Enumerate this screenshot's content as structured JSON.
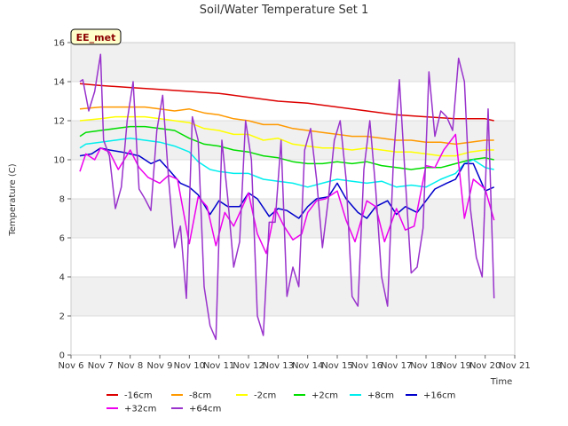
{
  "chart_data": {
    "type": "line",
    "title": "Soil/Water Temperature Set 1",
    "xlabel": "Time",
    "ylabel": "Temperature (C)",
    "site_badge": "EE_met",
    "xlim": [
      6,
      21
    ],
    "ylim": [
      0,
      16
    ],
    "x_ticks": [
      6,
      7,
      8,
      9,
      10,
      11,
      12,
      13,
      14,
      15,
      16,
      17,
      18,
      19,
      20,
      21
    ],
    "x_tick_labels": [
      "Nov 6",
      "Nov 7",
      "Nov 8",
      "Nov 9",
      "Nov 10",
      "Nov 11",
      "Nov 12",
      "Nov 13",
      "Nov 14",
      "Nov 15",
      "Nov 16",
      "Nov 17",
      "Nov 18",
      "Nov 19",
      "Nov 20",
      "Nov 21"
    ],
    "y_ticks": [
      0,
      2,
      4,
      6,
      8,
      10,
      12,
      14,
      16
    ],
    "y_tick_labels": [
      "0",
      "2",
      "4",
      "6",
      "8",
      "10",
      "12",
      "14",
      "16"
    ],
    "grid": true,
    "banded_background": true,
    "legend_position": "bottom",
    "series": [
      {
        "name": "-16cm",
        "color": "#dd0000",
        "x": [
          6.3,
          7,
          8,
          9,
          10,
          11,
          12,
          13,
          14,
          15,
          16,
          17,
          18,
          19,
          20,
          20.3
        ],
        "y": [
          13.9,
          13.8,
          13.7,
          13.6,
          13.5,
          13.4,
          13.2,
          13.0,
          12.9,
          12.7,
          12.5,
          12.3,
          12.2,
          12.1,
          12.1,
          12.0
        ]
      },
      {
        "name": "-8cm",
        "color": "#ff9900",
        "x": [
          6.3,
          7,
          8,
          8.5,
          9,
          9.5,
          10,
          10.5,
          11,
          11.5,
          12,
          12.5,
          13,
          13.5,
          14,
          14.5,
          15,
          15.5,
          16,
          16.5,
          17,
          17.5,
          18,
          18.5,
          19,
          19.5,
          20,
          20.3
        ],
        "y": [
          12.6,
          12.7,
          12.7,
          12.7,
          12.6,
          12.5,
          12.6,
          12.4,
          12.3,
          12.1,
          12.0,
          11.8,
          11.8,
          11.6,
          11.5,
          11.4,
          11.3,
          11.2,
          11.2,
          11.1,
          11.0,
          11.0,
          10.9,
          10.9,
          10.8,
          10.9,
          11.0,
          11.0
        ]
      },
      {
        "name": "-2cm",
        "color": "#ffff00",
        "x": [
          6.3,
          7,
          7.5,
          8,
          8.5,
          9,
          9.5,
          10,
          10.5,
          11,
          11.5,
          12,
          12.5,
          13,
          13.5,
          14,
          14.5,
          15,
          15.5,
          16,
          16.5,
          17,
          17.5,
          18,
          18.5,
          19,
          19.5,
          20,
          20.3
        ],
        "y": [
          12.0,
          12.1,
          12.2,
          12.2,
          12.2,
          12.1,
          12.0,
          11.9,
          11.6,
          11.5,
          11.3,
          11.3,
          11.0,
          11.1,
          10.8,
          10.7,
          10.6,
          10.6,
          10.5,
          10.6,
          10.5,
          10.4,
          10.4,
          10.3,
          10.2,
          10.2,
          10.4,
          10.5,
          10.5
        ]
      },
      {
        "name": "+2cm",
        "color": "#00dd00",
        "x": [
          6.3,
          6.5,
          7,
          7.5,
          8,
          8.5,
          9,
          9.5,
          10,
          10.5,
          11,
          11.5,
          12,
          12.5,
          13,
          13.5,
          14,
          14.5,
          15,
          15.5,
          16,
          16.5,
          17,
          17.5,
          18,
          18.5,
          19,
          19.5,
          20,
          20.3
        ],
        "y": [
          11.2,
          11.4,
          11.5,
          11.6,
          11.7,
          11.7,
          11.6,
          11.5,
          11.1,
          10.8,
          10.7,
          10.5,
          10.4,
          10.2,
          10.1,
          9.9,
          9.8,
          9.8,
          9.9,
          9.8,
          9.9,
          9.7,
          9.6,
          9.5,
          9.6,
          9.6,
          9.8,
          10.0,
          10.1,
          10.0
        ]
      },
      {
        "name": "+8cm",
        "color": "#00eeee",
        "x": [
          6.3,
          6.5,
          7,
          7.5,
          8,
          8.5,
          9,
          9.5,
          10,
          10.3,
          10.7,
          11,
          11.5,
          12,
          12.5,
          13,
          13.5,
          14,
          14.5,
          15,
          15.5,
          16,
          16.5,
          17,
          17.5,
          18,
          18.5,
          19,
          19.3,
          19.6,
          20,
          20.3
        ],
        "y": [
          10.6,
          10.8,
          10.9,
          11.0,
          11.1,
          11.0,
          10.9,
          10.7,
          10.4,
          9.9,
          9.5,
          9.4,
          9.3,
          9.3,
          9.0,
          8.9,
          8.8,
          8.6,
          8.8,
          9.0,
          8.9,
          8.8,
          8.9,
          8.6,
          8.7,
          8.6,
          9.0,
          9.3,
          9.8,
          10.0,
          9.6,
          9.5
        ]
      },
      {
        "name": "+16cm",
        "color": "#0000cc",
        "x": [
          6.3,
          6.7,
          7,
          7.3,
          7.7,
          8,
          8.3,
          8.7,
          9,
          9.3,
          9.7,
          10,
          10.3,
          10.7,
          11,
          11.3,
          11.7,
          12,
          12.3,
          12.7,
          13,
          13.3,
          13.7,
          14,
          14.3,
          14.7,
          15,
          15.3,
          15.7,
          16,
          16.3,
          16.7,
          17,
          17.3,
          17.7,
          18,
          18.3,
          18.7,
          19,
          19.3,
          19.6,
          20,
          20.3
        ],
        "y": [
          10.2,
          10.3,
          10.6,
          10.5,
          10.4,
          10.3,
          10.2,
          9.8,
          10.0,
          9.5,
          8.8,
          8.6,
          8.2,
          7.2,
          7.9,
          7.6,
          7.6,
          8.3,
          8.0,
          7.1,
          7.5,
          7.4,
          7.0,
          7.6,
          8.0,
          8.1,
          8.8,
          8.0,
          7.3,
          7.0,
          7.6,
          7.9,
          7.2,
          7.6,
          7.3,
          7.9,
          8.5,
          8.8,
          9.0,
          9.8,
          9.8,
          8.4,
          8.6
        ]
      },
      {
        "name": "+32cm",
        "color": "#ee00ee",
        "x": [
          6.3,
          6.5,
          6.8,
          7,
          7.3,
          7.6,
          8,
          8.3,
          8.6,
          9,
          9.3,
          9.6,
          10,
          10.3,
          10.6,
          10.9,
          11.2,
          11.5,
          11.8,
          12,
          12.3,
          12.6,
          12.9,
          13.2,
          13.5,
          13.8,
          14,
          14.3,
          14.6,
          15,
          15.3,
          15.6,
          16,
          16.3,
          16.6,
          17,
          17.3,
          17.6,
          18,
          18.3,
          18.6,
          19,
          19.3,
          19.6,
          20,
          20.3
        ],
        "y": [
          9.4,
          10.3,
          10.0,
          10.6,
          10.4,
          9.5,
          10.5,
          9.6,
          9.1,
          8.8,
          9.2,
          9.0,
          5.7,
          8.1,
          7.6,
          5.6,
          7.3,
          6.6,
          7.6,
          8.3,
          6.2,
          5.2,
          7.5,
          6.6,
          5.9,
          6.2,
          7.3,
          7.9,
          8.0,
          8.4,
          6.9,
          5.8,
          7.9,
          7.6,
          5.8,
          7.5,
          6.4,
          6.6,
          9.7,
          9.6,
          10.5,
          11.3,
          7.0,
          9.0,
          8.5,
          6.9
        ]
      },
      {
        "name": "+64cm",
        "color": "#9933cc",
        "x": [
          6.3,
          6.4,
          6.6,
          6.8,
          7,
          7.1,
          7.3,
          7.5,
          7.7,
          7.9,
          8.1,
          8.3,
          8.5,
          8.7,
          8.9,
          9.1,
          9.3,
          9.5,
          9.7,
          9.9,
          10.1,
          10.3,
          10.5,
          10.7,
          10.9,
          11.1,
          11.3,
          11.5,
          11.7,
          11.9,
          12.1,
          12.3,
          12.5,
          12.7,
          12.9,
          13.1,
          13.3,
          13.5,
          13.7,
          13.9,
          14.1,
          14.3,
          14.5,
          14.7,
          14.9,
          15.1,
          15.3,
          15.5,
          15.7,
          15.9,
          16.1,
          16.3,
          16.5,
          16.7,
          16.9,
          17.1,
          17.3,
          17.5,
          17.7,
          17.9,
          18.1,
          18.3,
          18.5,
          18.7,
          18.9,
          19.1,
          19.3,
          19.5,
          19.7,
          19.9,
          20.1,
          20.3
        ],
        "y": [
          14.0,
          14.1,
          12.5,
          13.5,
          15.4,
          11.0,
          10.2,
          7.5,
          8.6,
          12.0,
          14.0,
          8.5,
          8.0,
          7.4,
          11.5,
          13.3,
          9.0,
          5.5,
          6.6,
          2.9,
          12.2,
          11.0,
          3.5,
          1.5,
          0.8,
          11.0,
          8.0,
          4.5,
          5.8,
          12.0,
          10.0,
          2.0,
          1.0,
          6.8,
          6.8,
          11.0,
          3.0,
          4.5,
          3.5,
          10.5,
          11.6,
          9.0,
          5.5,
          8.0,
          11.0,
          12.0,
          9.0,
          3.0,
          2.5,
          9.5,
          12.0,
          8.5,
          4.0,
          2.5,
          10.0,
          14.1,
          9.0,
          4.2,
          4.5,
          6.5,
          14.5,
          11.2,
          12.5,
          12.2,
          11.5,
          15.2,
          14.0,
          7.5,
          5.0,
          4.0,
          12.6,
          2.9
        ]
      }
    ]
  }
}
